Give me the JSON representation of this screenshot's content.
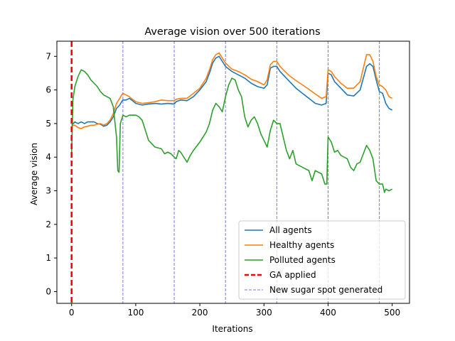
{
  "chart_data": {
    "type": "line",
    "title": "Average vision over 500 iterations",
    "xlabel": "Iterations",
    "ylabel": "Average vision",
    "xlim": [
      -23,
      527
    ],
    "ylim": [
      -0.35,
      7.45
    ],
    "xticks": [
      0,
      100,
      200,
      300,
      400,
      500
    ],
    "yticks": [
      0,
      1,
      2,
      3,
      4,
      5,
      6,
      7
    ],
    "grid": false,
    "legend_position": "lower-right",
    "ga_applied": {
      "name": "GA applied",
      "x": 0,
      "color": "#ff0000"
    },
    "sugar_spots": {
      "name": "New sugar spot generated",
      "x": [
        80,
        160,
        240,
        320,
        400,
        480
      ],
      "color": "#7777ee"
    },
    "series": [
      {
        "name": "All agents",
        "color": "#1f77b4",
        "points": [
          [
            0,
            4.95
          ],
          [
            5,
            5.05
          ],
          [
            10,
            5.0
          ],
          [
            15,
            5.05
          ],
          [
            20,
            5.0
          ],
          [
            25,
            5.05
          ],
          [
            30,
            5.05
          ],
          [
            35,
            5.05
          ],
          [
            40,
            5.0
          ],
          [
            45,
            4.98
          ],
          [
            50,
            4.92
          ],
          [
            55,
            4.95
          ],
          [
            60,
            5.05
          ],
          [
            65,
            5.2
          ],
          [
            70,
            5.45
          ],
          [
            75,
            5.55
          ],
          [
            78,
            5.65
          ],
          [
            80,
            5.7
          ],
          [
            85,
            5.7
          ],
          [
            90,
            5.75
          ],
          [
            95,
            5.68
          ],
          [
            100,
            5.6
          ],
          [
            110,
            5.55
          ],
          [
            120,
            5.58
          ],
          [
            130,
            5.6
          ],
          [
            140,
            5.58
          ],
          [
            150,
            5.6
          ],
          [
            160,
            5.58
          ],
          [
            163,
            5.65
          ],
          [
            170,
            5.7
          ],
          [
            180,
            5.68
          ],
          [
            190,
            5.8
          ],
          [
            200,
            6.0
          ],
          [
            210,
            6.25
          ],
          [
            215,
            6.5
          ],
          [
            220,
            6.8
          ],
          [
            225,
            6.95
          ],
          [
            230,
            7.0
          ],
          [
            235,
            6.85
          ],
          [
            240,
            6.7
          ],
          [
            250,
            6.55
          ],
          [
            260,
            6.45
          ],
          [
            270,
            6.35
          ],
          [
            280,
            6.2
          ],
          [
            290,
            6.1
          ],
          [
            300,
            6.05
          ],
          [
            305,
            6.15
          ],
          [
            310,
            6.65
          ],
          [
            315,
            6.7
          ],
          [
            320,
            6.7
          ],
          [
            325,
            6.55
          ],
          [
            330,
            6.45
          ],
          [
            340,
            6.25
          ],
          [
            350,
            6.05
          ],
          [
            360,
            5.9
          ],
          [
            370,
            5.75
          ],
          [
            380,
            5.6
          ],
          [
            390,
            5.55
          ],
          [
            397,
            5.6
          ],
          [
            400,
            6.5
          ],
          [
            405,
            6.45
          ],
          [
            410,
            6.25
          ],
          [
            420,
            6.05
          ],
          [
            430,
            5.85
          ],
          [
            440,
            5.82
          ],
          [
            450,
            6.0
          ],
          [
            455,
            6.35
          ],
          [
            460,
            6.7
          ],
          [
            465,
            6.78
          ],
          [
            470,
            6.7
          ],
          [
            475,
            6.3
          ],
          [
            480,
            5.95
          ],
          [
            485,
            5.9
          ],
          [
            490,
            5.6
          ],
          [
            495,
            5.45
          ],
          [
            500,
            5.4
          ]
        ]
      },
      {
        "name": "Healthy agents",
        "color": "#ff7f0e",
        "points": [
          [
            0,
            4.95
          ],
          [
            5,
            4.95
          ],
          [
            10,
            4.88
          ],
          [
            15,
            4.85
          ],
          [
            20,
            4.9
          ],
          [
            25,
            4.92
          ],
          [
            30,
            4.95
          ],
          [
            35,
            4.95
          ],
          [
            40,
            4.98
          ],
          [
            45,
            5.0
          ],
          [
            50,
            4.95
          ],
          [
            55,
            5.0
          ],
          [
            60,
            5.1
          ],
          [
            65,
            5.3
          ],
          [
            70,
            5.6
          ],
          [
            75,
            5.75
          ],
          [
            78,
            5.85
          ],
          [
            80,
            5.9
          ],
          [
            85,
            5.85
          ],
          [
            90,
            5.8
          ],
          [
            95,
            5.72
          ],
          [
            100,
            5.65
          ],
          [
            110,
            5.6
          ],
          [
            120,
            5.62
          ],
          [
            130,
            5.65
          ],
          [
            140,
            5.7
          ],
          [
            150,
            5.68
          ],
          [
            160,
            5.68
          ],
          [
            163,
            5.72
          ],
          [
            170,
            5.75
          ],
          [
            180,
            5.75
          ],
          [
            190,
            5.9
          ],
          [
            200,
            6.05
          ],
          [
            210,
            6.35
          ],
          [
            215,
            6.6
          ],
          [
            220,
            6.9
          ],
          [
            225,
            7.05
          ],
          [
            230,
            7.1
          ],
          [
            235,
            6.95
          ],
          [
            240,
            6.8
          ],
          [
            250,
            6.62
          ],
          [
            260,
            6.55
          ],
          [
            270,
            6.45
          ],
          [
            280,
            6.32
          ],
          [
            290,
            6.25
          ],
          [
            300,
            6.15
          ],
          [
            305,
            6.3
          ],
          [
            310,
            6.75
          ],
          [
            315,
            6.85
          ],
          [
            320,
            6.85
          ],
          [
            325,
            6.7
          ],
          [
            330,
            6.6
          ],
          [
            340,
            6.42
          ],
          [
            350,
            6.28
          ],
          [
            360,
            6.15
          ],
          [
            370,
            6.02
          ],
          [
            380,
            5.88
          ],
          [
            390,
            5.75
          ],
          [
            397,
            5.8
          ],
          [
            400,
            6.6
          ],
          [
            405,
            6.55
          ],
          [
            410,
            6.4
          ],
          [
            420,
            6.2
          ],
          [
            430,
            6.05
          ],
          [
            440,
            6.05
          ],
          [
            450,
            6.25
          ],
          [
            455,
            6.65
          ],
          [
            460,
            7.05
          ],
          [
            465,
            7.05
          ],
          [
            470,
            6.85
          ],
          [
            475,
            6.4
          ],
          [
            480,
            6.15
          ],
          [
            485,
            6.1
          ],
          [
            490,
            6.0
          ],
          [
            495,
            5.8
          ],
          [
            500,
            5.75
          ]
        ]
      },
      {
        "name": "Polluted agents",
        "color": "#2ca02c",
        "points": [
          [
            0,
            4.1
          ],
          [
            2,
            5.7
          ],
          [
            5,
            6.1
          ],
          [
            10,
            6.4
          ],
          [
            15,
            6.6
          ],
          [
            20,
            6.55
          ],
          [
            25,
            6.45
          ],
          [
            30,
            6.3
          ],
          [
            35,
            6.2
          ],
          [
            40,
            6.1
          ],
          [
            45,
            5.95
          ],
          [
            50,
            5.85
          ],
          [
            55,
            5.8
          ],
          [
            60,
            5.75
          ],
          [
            65,
            5.5
          ],
          [
            70,
            4.6
          ],
          [
            72,
            3.6
          ],
          [
            74,
            3.55
          ],
          [
            76,
            5.0
          ],
          [
            80,
            5.25
          ],
          [
            85,
            5.2
          ],
          [
            90,
            5.25
          ],
          [
            100,
            5.25
          ],
          [
            105,
            5.2
          ],
          [
            110,
            5.1
          ],
          [
            115,
            4.8
          ],
          [
            120,
            4.5
          ],
          [
            125,
            4.4
          ],
          [
            130,
            4.3
          ],
          [
            140,
            4.25
          ],
          [
            145,
            4.1
          ],
          [
            150,
            4.15
          ],
          [
            155,
            4.1
          ],
          [
            160,
            4.0
          ],
          [
            163,
            3.95
          ],
          [
            167,
            4.2
          ],
          [
            170,
            4.15
          ],
          [
            175,
            4.0
          ],
          [
            180,
            3.85
          ],
          [
            185,
            4.05
          ],
          [
            190,
            4.2
          ],
          [
            200,
            4.45
          ],
          [
            210,
            4.75
          ],
          [
            215,
            5.0
          ],
          [
            220,
            5.4
          ],
          [
            225,
            5.6
          ],
          [
            230,
            5.5
          ],
          [
            235,
            5.35
          ],
          [
            240,
            5.8
          ],
          [
            245,
            6.15
          ],
          [
            250,
            6.35
          ],
          [
            255,
            6.3
          ],
          [
            260,
            6.0
          ],
          [
            265,
            5.8
          ],
          [
            270,
            5.2
          ],
          [
            275,
            4.9
          ],
          [
            280,
            5.1
          ],
          [
            285,
            5.2
          ],
          [
            290,
            5.0
          ],
          [
            295,
            4.7
          ],
          [
            300,
            4.5
          ],
          [
            305,
            4.3
          ],
          [
            310,
            4.8
          ],
          [
            315,
            5.1
          ],
          [
            320,
            5.0
          ],
          [
            325,
            5.0
          ],
          [
            330,
            4.6
          ],
          [
            335,
            4.2
          ],
          [
            340,
            3.95
          ],
          [
            345,
            4.2
          ],
          [
            350,
            3.8
          ],
          [
            360,
            3.7
          ],
          [
            370,
            3.6
          ],
          [
            375,
            3.3
          ],
          [
            380,
            3.6
          ],
          [
            390,
            3.5
          ],
          [
            395,
            3.2
          ],
          [
            398,
            3.2
          ],
          [
            400,
            4.6
          ],
          [
            405,
            4.45
          ],
          [
            410,
            4.15
          ],
          [
            415,
            4.2
          ],
          [
            420,
            4.05
          ],
          [
            425,
            4.0
          ],
          [
            430,
            3.95
          ],
          [
            435,
            3.7
          ],
          [
            440,
            3.6
          ],
          [
            445,
            3.8
          ],
          [
            450,
            3.85
          ],
          [
            455,
            4.1
          ],
          [
            460,
            4.35
          ],
          [
            465,
            4.2
          ],
          [
            470,
            3.95
          ],
          [
            475,
            3.3
          ],
          [
            480,
            3.2
          ],
          [
            485,
            3.2
          ],
          [
            488,
            2.95
          ],
          [
            490,
            3.05
          ],
          [
            495,
            3.0
          ],
          [
            500,
            3.05
          ]
        ]
      }
    ]
  }
}
